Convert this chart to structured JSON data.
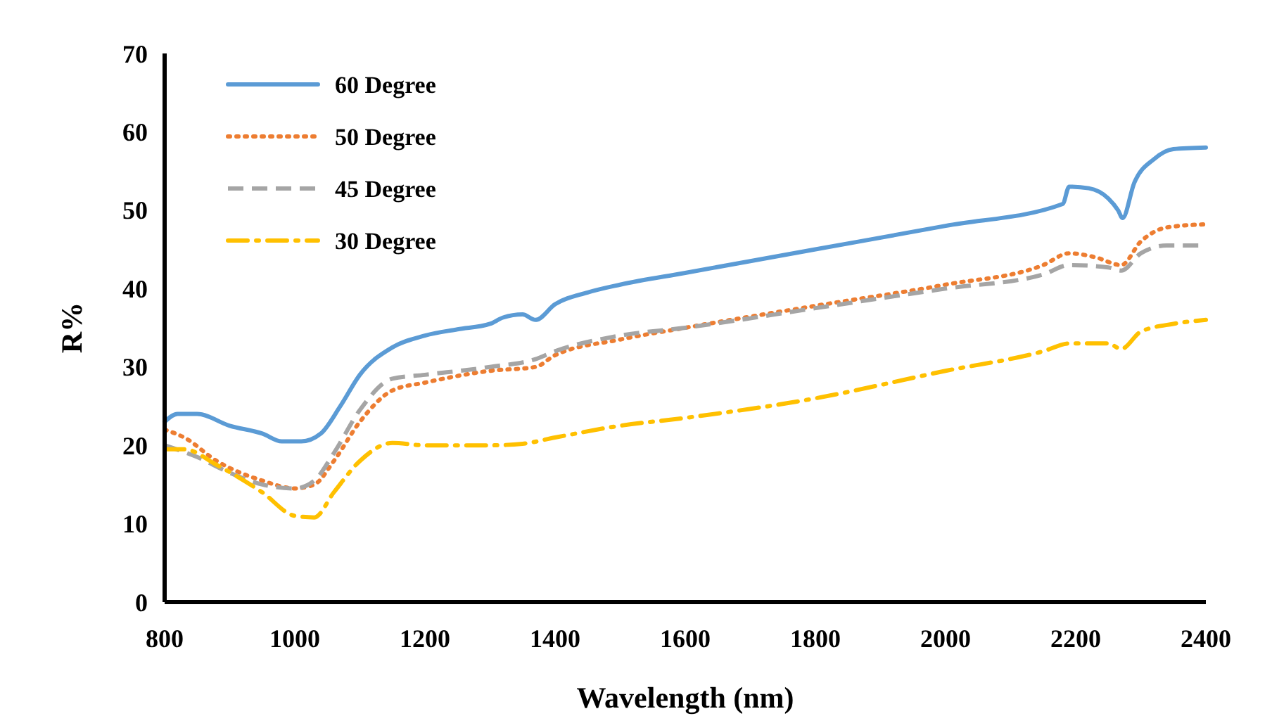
{
  "chart_data": {
    "type": "line",
    "xlabel": "Wavelength (nm)",
    "ylabel": "R%",
    "xlim": [
      800,
      2400
    ],
    "xticks": [
      800,
      1000,
      1200,
      1400,
      1600,
      1800,
      2000,
      2200,
      2400
    ],
    "ylim": [
      0,
      70
    ],
    "yticks": [
      0,
      10,
      20,
      30,
      40,
      50,
      60,
      70
    ],
    "grid": false,
    "legend": "top left",
    "marker": "none",
    "series": [
      {
        "name": "60 Degree",
        "color": "#5b9bd5",
        "line_style": "solid",
        "x": [
          800,
          820,
          850,
          900,
          950,
          980,
          1010,
          1040,
          1070,
          1100,
          1150,
          1200,
          1250,
          1300,
          1320,
          1350,
          1370,
          1400,
          1450,
          1500,
          1600,
          1800,
          2000,
          2180,
          2190,
          2220,
          2250,
          2265,
          2272,
          2290,
          2320,
          2350,
          2400
        ],
        "values": [
          23,
          24,
          24,
          22.5,
          21.5,
          20.5,
          20.5,
          21.5,
          25,
          29,
          32.5,
          34,
          34.8,
          35.5,
          36.3,
          36.7,
          36,
          38,
          39.5,
          40.5,
          42,
          45,
          48,
          50.8,
          53,
          52.8,
          51.5,
          50,
          49,
          53.5,
          56.5,
          57.8,
          58
        ]
      },
      {
        "name": "50 Degree",
        "color": "#ed7d31",
        "line_style": "dotted",
        "x": [
          800,
          830,
          880,
          950,
          1000,
          1030,
          1060,
          1100,
          1150,
          1200,
          1300,
          1370,
          1400,
          1500,
          1600,
          1800,
          2000,
          2150,
          2190,
          2230,
          2270,
          2300,
          2340,
          2400
        ],
        "values": [
          22,
          21,
          18,
          15.5,
          14.5,
          15,
          18,
          23,
          27,
          28,
          29.5,
          30,
          31.5,
          33.5,
          35,
          37.8,
          40.5,
          43,
          44.5,
          44,
          43,
          46,
          47.8,
          48.2
        ]
      },
      {
        "name": "45 Degree",
        "color": "#a5a5a5",
        "line_style": "dashed",
        "x": [
          800,
          850,
          900,
          950,
          1000,
          1030,
          1060,
          1100,
          1150,
          1200,
          1300,
          1370,
          1400,
          1500,
          1600,
          1800,
          2000,
          2150,
          2190,
          2250,
          2270,
          2300,
          2340,
          2400
        ],
        "values": [
          20,
          18.5,
          16.5,
          15,
          14.5,
          15.5,
          19,
          24.5,
          28.5,
          29,
          30,
          31,
          32,
          34,
          35,
          37.5,
          40,
          41.8,
          43,
          42.7,
          42.3,
          44.5,
          45.5,
          45.5
        ]
      },
      {
        "name": "30 Degree",
        "color": "#ffc000",
        "line_style": "dashdot",
        "x": [
          800,
          830,
          880,
          950,
          1000,
          1030,
          1060,
          1100,
          1150,
          1200,
          1300,
          1350,
          1400,
          1500,
          1600,
          1800,
          2000,
          2150,
          2190,
          2250,
          2270,
          2300,
          2350,
          2400
        ],
        "values": [
          19.5,
          19.5,
          17.5,
          14,
          11,
          10.8,
          14,
          18,
          20.3,
          20,
          20,
          20.2,
          21,
          22.5,
          23.5,
          26,
          29.5,
          32,
          33,
          33,
          32.3,
          34.5,
          35.5,
          36
        ]
      }
    ]
  }
}
